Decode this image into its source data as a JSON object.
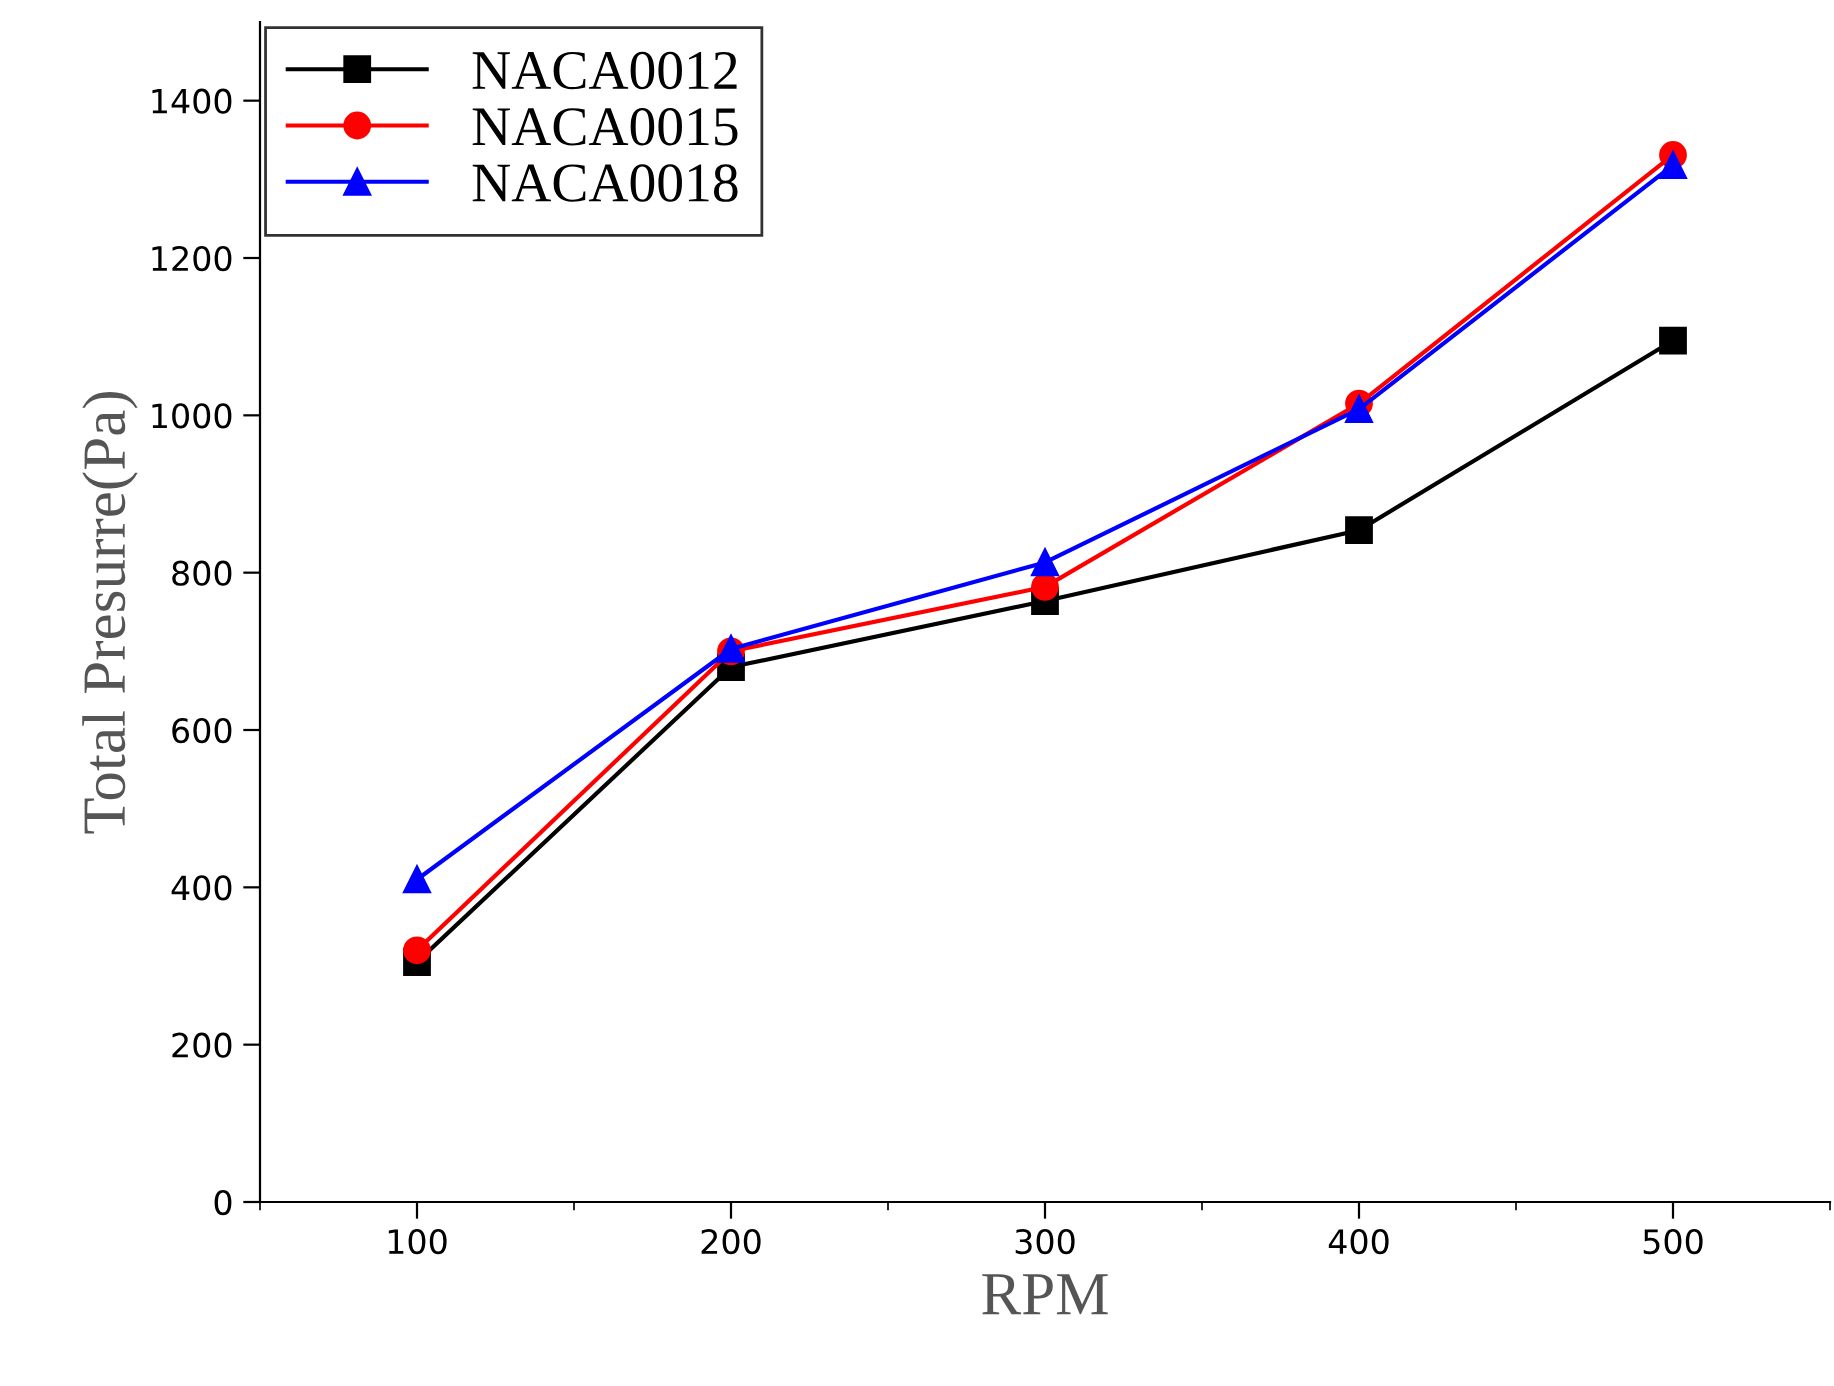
{
  "chart_data": {
    "type": "line",
    "xlabel": "RPM",
    "ylabel": "Total Presurre(Pa)",
    "x": [
      100,
      200,
      300,
      400,
      500
    ],
    "series": [
      {
        "name": "NACA0012",
        "color": "#000000",
        "marker": "square",
        "values": [
          305,
          680,
          764,
          854,
          1095
        ]
      },
      {
        "name": "NACA0015",
        "color": "#ff0000",
        "marker": "circle",
        "values": [
          320,
          700,
          782,
          1015,
          1331
        ]
      },
      {
        "name": "NACA0018",
        "color": "#0000ff",
        "marker": "triangle",
        "values": [
          410,
          703,
          813,
          1008,
          1318
        ]
      }
    ],
    "xlim": [
      50,
      550
    ],
    "xticks": [
      100,
      200,
      300,
      400,
      500
    ],
    "ylim": [
      0,
      1500
    ],
    "yticks": [
      0,
      200,
      400,
      600,
      800,
      1000,
      1200,
      1400
    ],
    "grid": false,
    "legend": "top left",
    "line_style": "solid"
  }
}
